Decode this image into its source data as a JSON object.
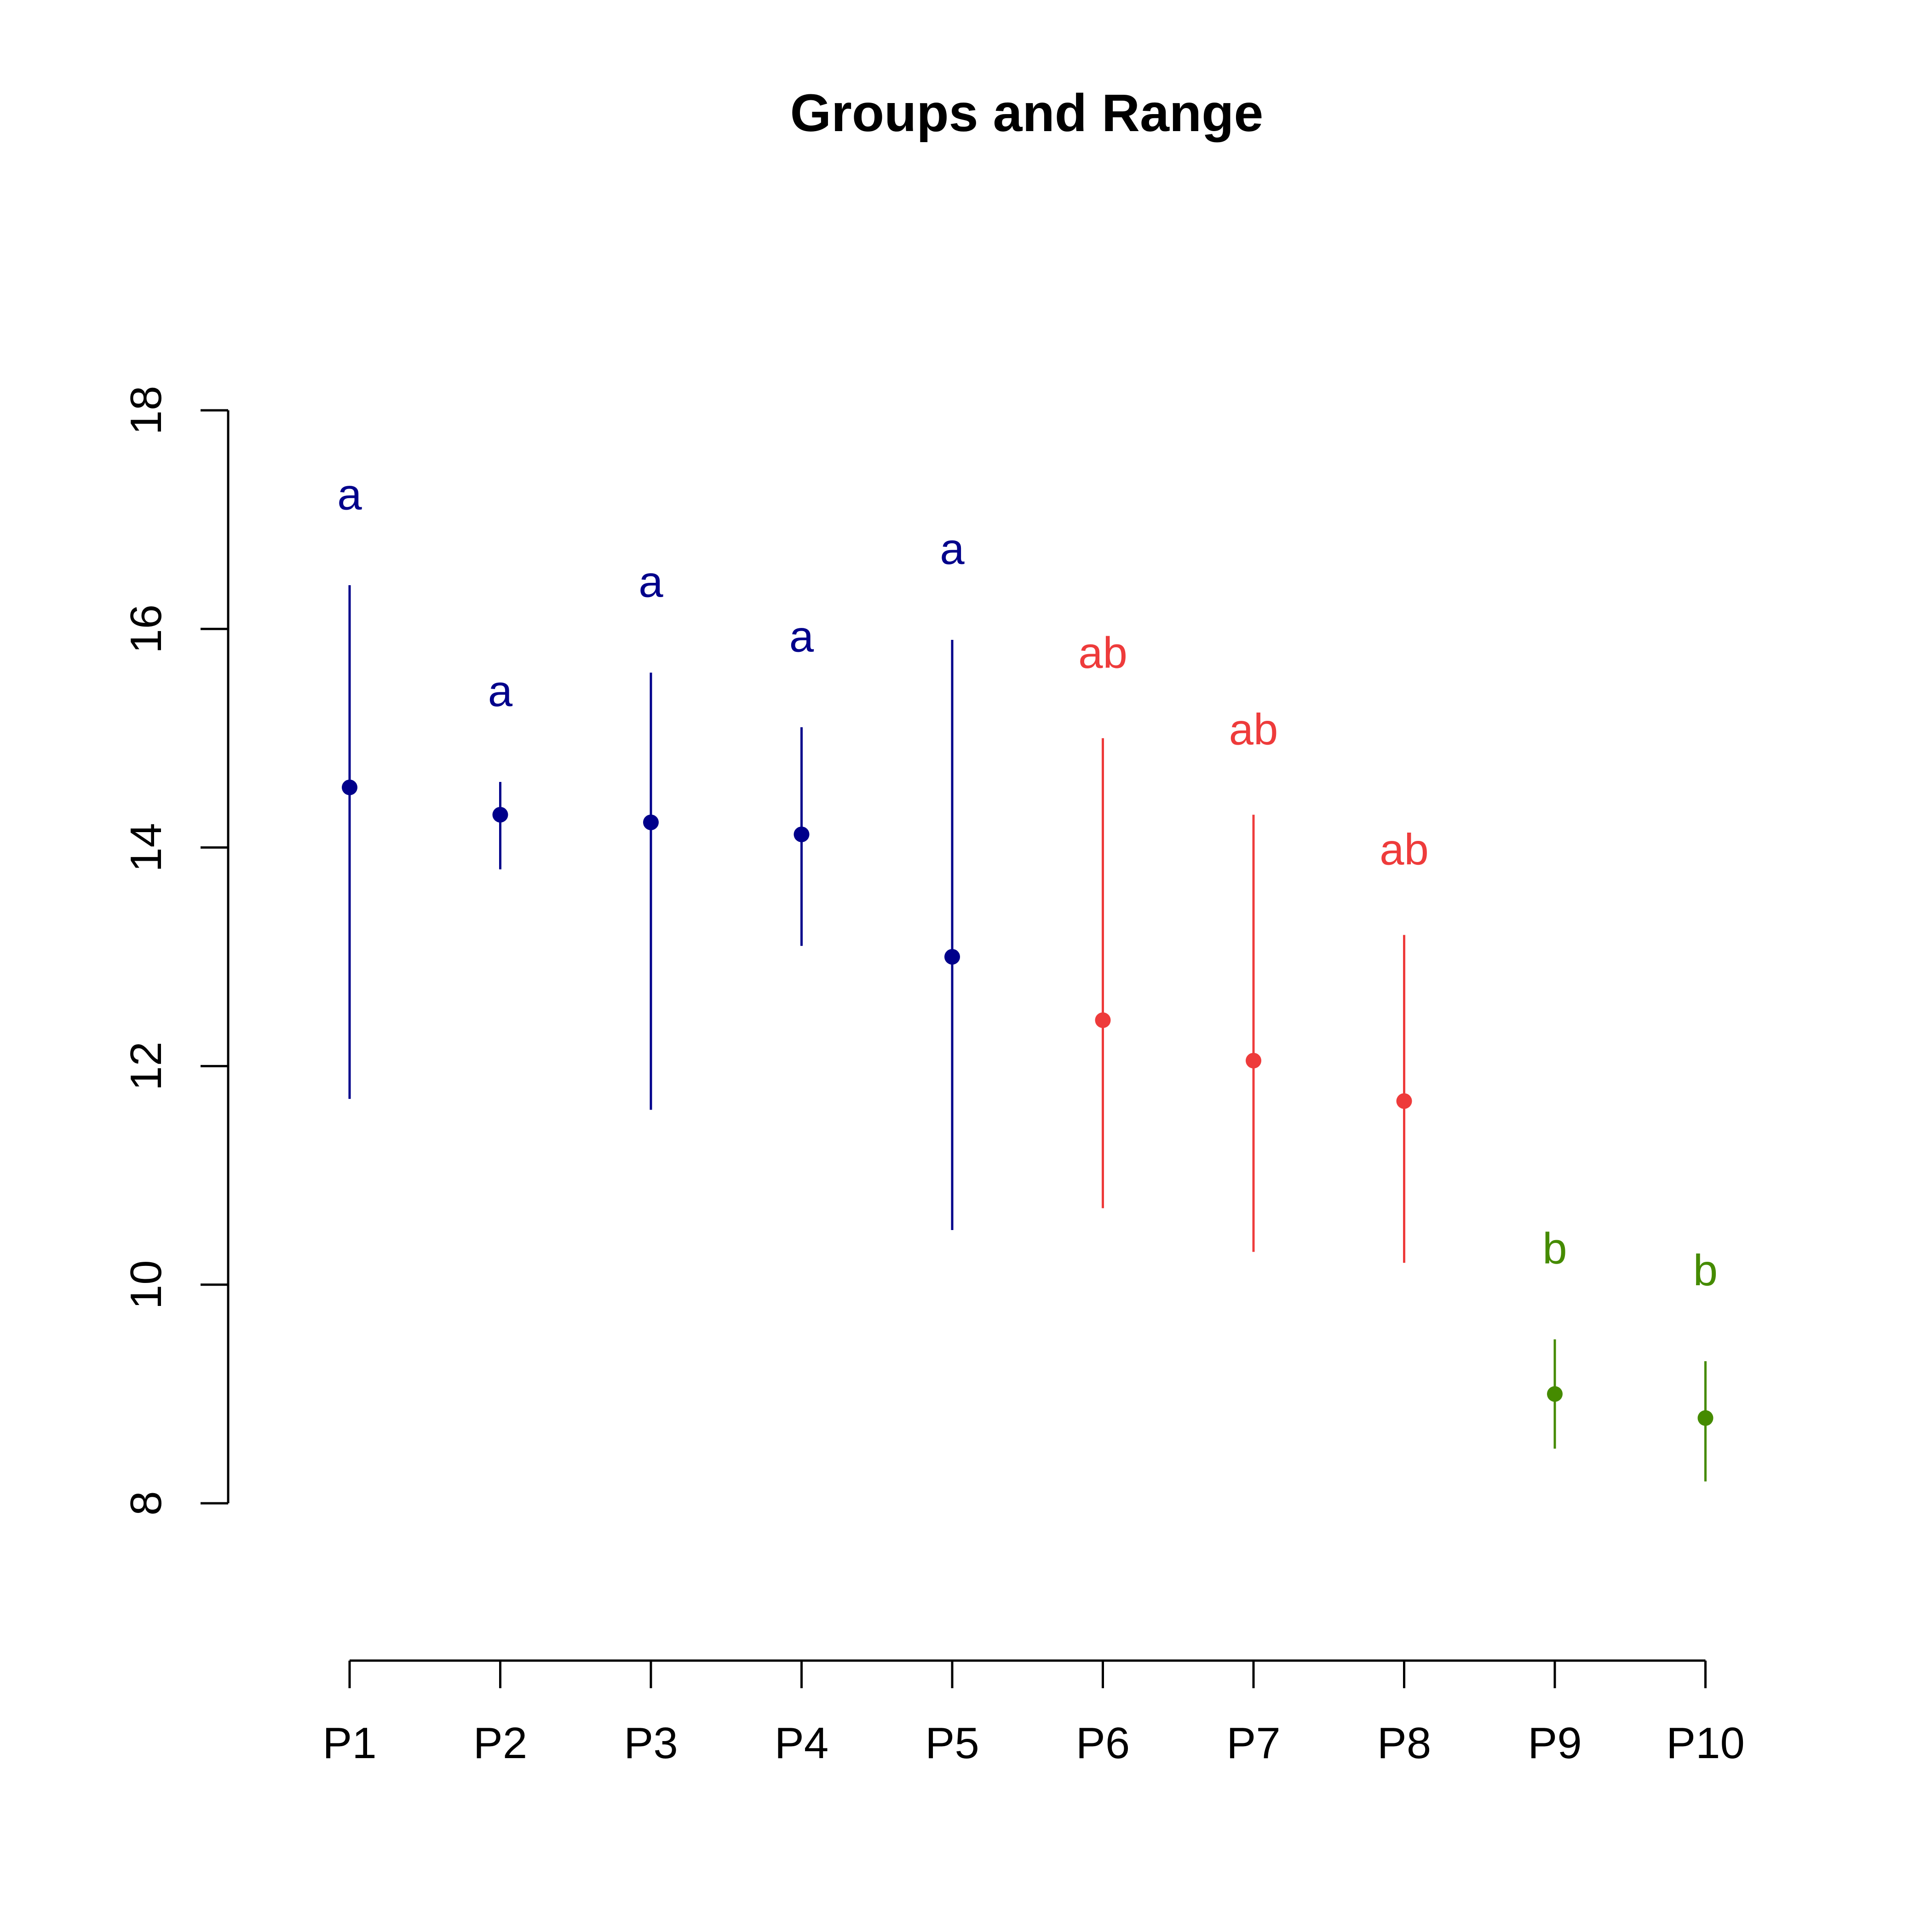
{
  "chart_data": {
    "type": "scatter",
    "title": "Groups and Range",
    "xlabel": "",
    "ylabel": "",
    "categories": [
      "P1",
      "P2",
      "P3",
      "P4",
      "P5",
      "P6",
      "P7",
      "P8",
      "P9",
      "P10"
    ],
    "y_ticks": [
      8,
      10,
      12,
      14,
      16,
      18
    ],
    "ylim": [
      8,
      18
    ],
    "grid": false,
    "legend": "none",
    "points": [
      {
        "category": "P1",
        "mean": 14.55,
        "min": 11.7,
        "max": 16.4,
        "group": "a",
        "label_y": 17.2
      },
      {
        "category": "P2",
        "mean": 14.3,
        "min": 13.8,
        "max": 14.6,
        "group": "a",
        "label_y": 15.4
      },
      {
        "category": "P3",
        "mean": 14.23,
        "min": 11.6,
        "max": 15.6,
        "group": "a",
        "label_y": 16.4
      },
      {
        "category": "P4",
        "mean": 14.12,
        "min": 13.1,
        "max": 15.1,
        "group": "a",
        "label_y": 15.9
      },
      {
        "category": "P5",
        "mean": 13.0,
        "min": 10.5,
        "max": 15.9,
        "group": "a",
        "label_y": 16.7
      },
      {
        "category": "P6",
        "mean": 12.42,
        "min": 10.7,
        "max": 15.0,
        "group": "ab",
        "label_y": 15.75
      },
      {
        "category": "P7",
        "mean": 12.05,
        "min": 10.3,
        "max": 14.3,
        "group": "ab",
        "label_y": 15.05
      },
      {
        "category": "P8",
        "mean": 11.68,
        "min": 10.2,
        "max": 13.2,
        "group": "ab",
        "label_y": 13.95
      },
      {
        "category": "P9",
        "mean": 9.0,
        "min": 8.5,
        "max": 9.5,
        "group": "b",
        "label_y": 10.3
      },
      {
        "category": "P10",
        "mean": 8.78,
        "min": 8.2,
        "max": 9.3,
        "group": "b",
        "label_y": 10.1
      }
    ],
    "group_colors": {
      "a": "#00008B",
      "ab": "#EE3B3B",
      "b": "#458B00"
    }
  }
}
